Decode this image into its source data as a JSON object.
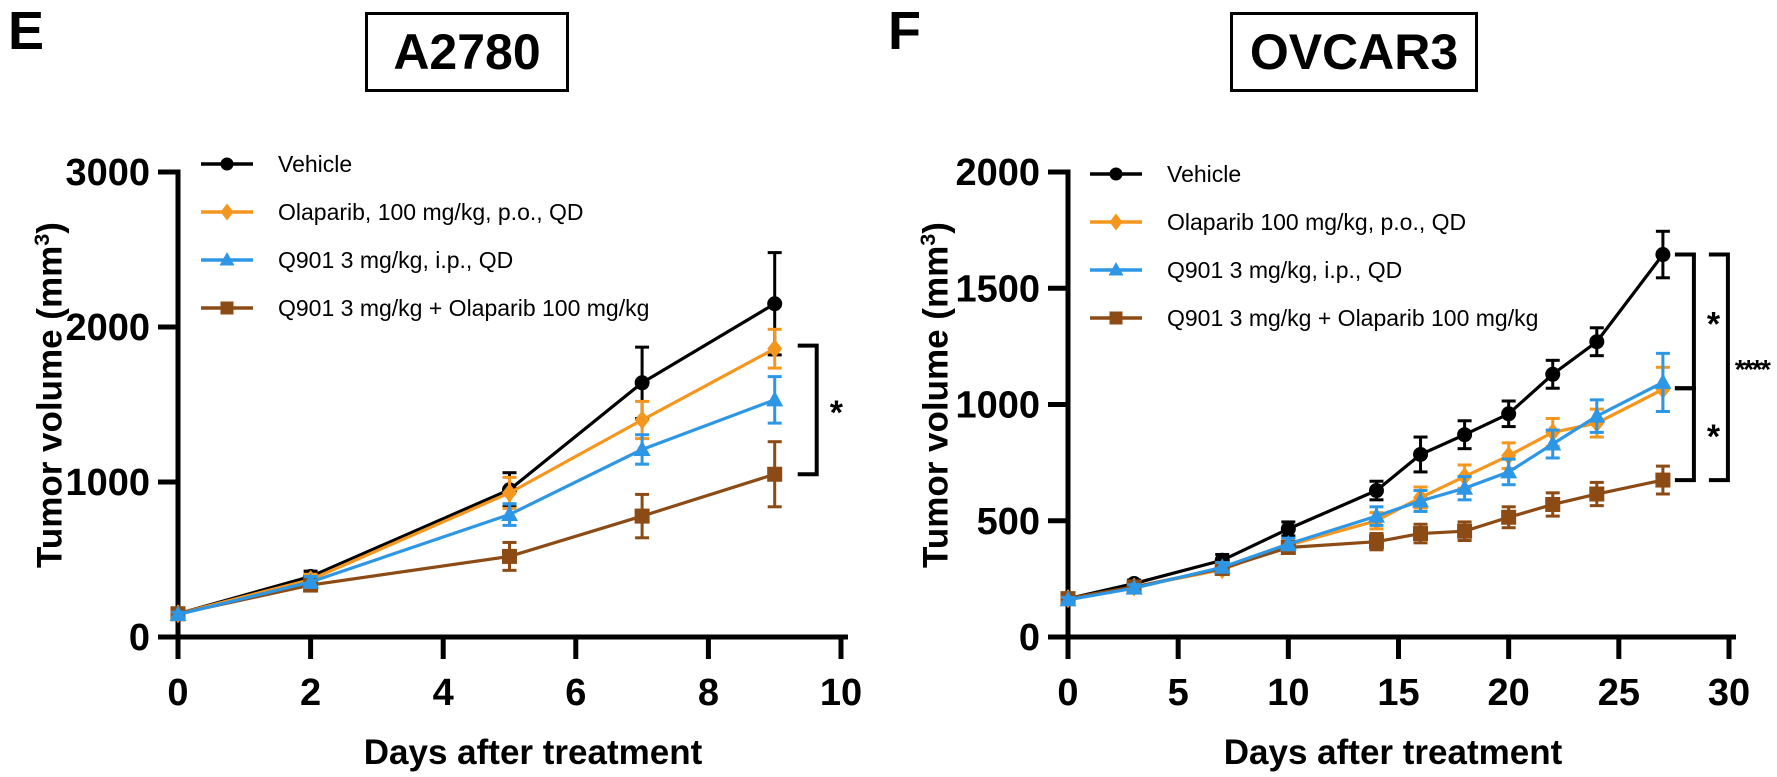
{
  "figure": {
    "background": "#FFFFFF",
    "panels": [
      {
        "letter": "E",
        "ylabel_pre": "Tumor volume (mm",
        "ylabel_sup": "3",
        "ylabel_post": ")"
      },
      {
        "letter": "F",
        "ylabel_pre": "Tumor volume (mm",
        "ylabel_sup": "3",
        "ylabel_post": ")"
      }
    ]
  },
  "colors": {
    "vehicle": "#000000",
    "olaparib": "#F5961E",
    "q901": "#2E97E5",
    "combo": "#8C4B14",
    "axis": "#000000"
  },
  "chart_data": [
    {
      "type": "line",
      "panel": "E",
      "title": "A2780",
      "xlabel": "Days after treatment",
      "ylabel": "Tumor volume (mm3)",
      "xlim": [
        0,
        10
      ],
      "ylim": [
        0,
        3000
      ],
      "xticks": [
        0,
        2,
        4,
        6,
        8,
        10
      ],
      "yticks": [
        0,
        1000,
        2000,
        3000
      ],
      "x": [
        0,
        2,
        5,
        7,
        9
      ],
      "grid": false,
      "legend_position": "upper-left",
      "series": [
        {
          "name": "Vehicle",
          "marker": "circle",
          "color": "#000000",
          "values": [
            150,
            390,
            950,
            1640,
            2150
          ],
          "errors": [
            15,
            35,
            110,
            230,
            330
          ]
        },
        {
          "name": "Olaparib, 100 mg/kg, p.o., QD",
          "marker": "diamond",
          "color": "#F5961E",
          "values": [
            150,
            370,
            930,
            1400,
            1860
          ],
          "errors": [
            15,
            35,
            100,
            120,
            125
          ]
        },
        {
          "name": "Q901 3 mg/kg, i.p., QD",
          "marker": "triangle",
          "color": "#2E97E5",
          "values": [
            145,
            355,
            790,
            1210,
            1530
          ],
          "errors": [
            15,
            35,
            70,
            95,
            150
          ]
        },
        {
          "name": "Q901 3 mg/kg + Olaparib 100 mg/kg",
          "marker": "square",
          "color": "#8C4B14",
          "values": [
            150,
            335,
            520,
            780,
            1050
          ],
          "errors": [
            15,
            35,
            90,
            140,
            210
          ]
        }
      ],
      "significance": [
        {
          "label": "*",
          "from": 1880,
          "to": 1050,
          "tier": 0
        }
      ]
    },
    {
      "type": "line",
      "panel": "F",
      "title": "OVCAR3",
      "xlabel": "Days after treatment",
      "ylabel": "Tumor volume (mm3)",
      "xlim": [
        0,
        30
      ],
      "ylim": [
        0,
        2000
      ],
      "xticks": [
        0,
        5,
        10,
        15,
        20,
        25,
        30
      ],
      "yticks": [
        0,
        500,
        1000,
        1500,
        2000
      ],
      "x": [
        0,
        3,
        7,
        10,
        14,
        16,
        18,
        20,
        22,
        24,
        27
      ],
      "grid": false,
      "legend_position": "upper-left",
      "series": [
        {
          "name": "Vehicle",
          "marker": "circle",
          "color": "#000000",
          "values": [
            165,
            230,
            330,
            465,
            630,
            785,
            870,
            960,
            1130,
            1270,
            1645
          ],
          "errors": [
            10,
            15,
            25,
            30,
            40,
            75,
            60,
            55,
            60,
            60,
            100
          ]
        },
        {
          "name": "Olaparib 100 mg/kg, p.o., QD",
          "marker": "diamond",
          "color": "#F5961E",
          "values": [
            165,
            215,
            290,
            395,
            500,
            600,
            690,
            780,
            880,
            920,
            1065
          ],
          "errors": [
            10,
            15,
            20,
            25,
            35,
            45,
            50,
            55,
            60,
            60,
            95
          ]
        },
        {
          "name": "Q901 3 mg/kg, i.p., QD",
          "marker": "triangle",
          "color": "#2E97E5",
          "values": [
            160,
            210,
            300,
            400,
            520,
            585,
            640,
            710,
            830,
            950,
            1095
          ],
          "errors": [
            10,
            15,
            20,
            25,
            40,
            45,
            50,
            55,
            60,
            70,
            125
          ]
        },
        {
          "name": "Q901 3 mg/kg + Olaparib 100 mg/kg",
          "marker": "square",
          "color": "#8C4B14",
          "values": [
            165,
            215,
            295,
            385,
            410,
            445,
            455,
            515,
            570,
            615,
            675
          ],
          "errors": [
            10,
            15,
            20,
            25,
            35,
            40,
            40,
            45,
            50,
            50,
            60
          ]
        }
      ],
      "significance": [
        {
          "label": "*",
          "from": 1645,
          "to": 1070,
          "tier": 0
        },
        {
          "label": "*",
          "from": 1070,
          "to": 675,
          "tier": 0
        },
        {
          "label": "****",
          "from": 1645,
          "to": 675,
          "tier": 1
        }
      ]
    }
  ]
}
